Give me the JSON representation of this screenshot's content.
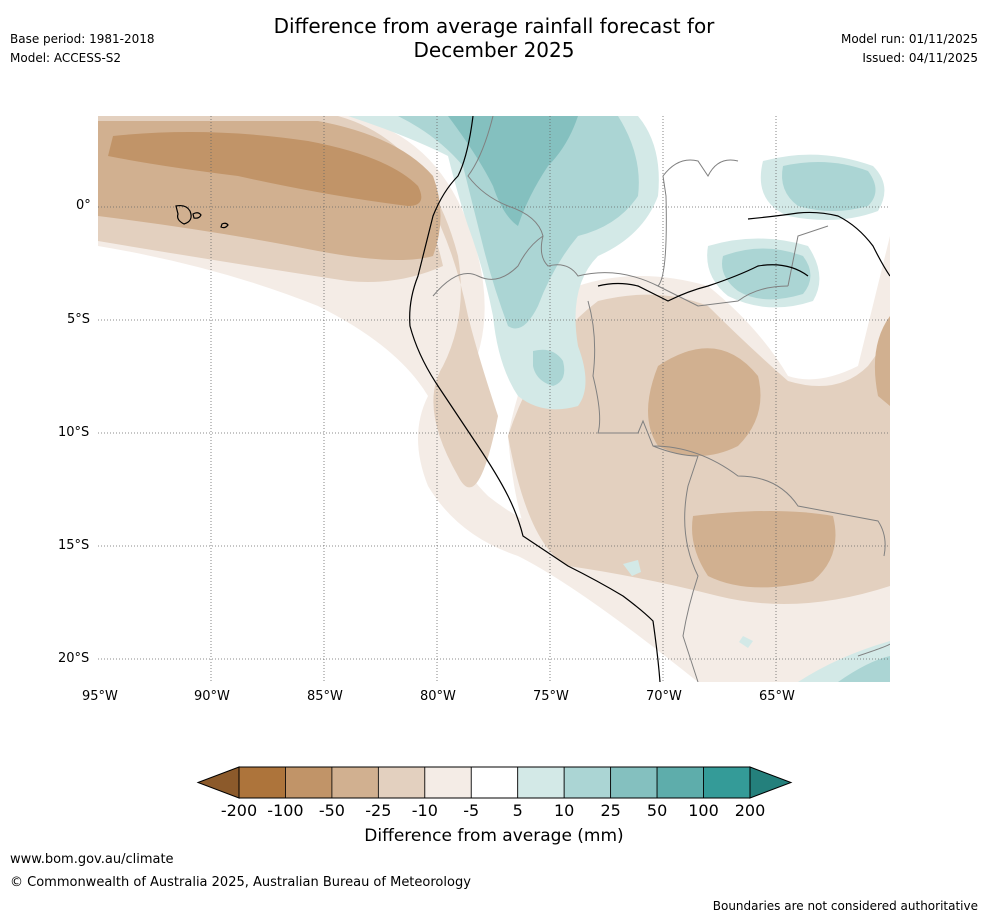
{
  "header": {
    "title_line1": "Difference from average rainfall forecast for",
    "title_line2": "December 2025",
    "base_period": "Base period: 1981-2018",
    "model": "Model: ACCESS-S2",
    "model_run": "Model run: 01/11/2025",
    "issued": "Issued: 04/11/2025"
  },
  "map": {
    "lon_labels": [
      "95°W",
      "90°W",
      "85°W",
      "80°W",
      "75°W",
      "70°W",
      "65°W"
    ],
    "lat_labels": [
      "0°",
      "5°S",
      "10°S",
      "15°S",
      "20°S"
    ],
    "colors": {
      "dry_200": "#8c5a2b",
      "dry_100": "#ad743b",
      "dry_50": "#c19468",
      "dry_25": "#d1b090",
      "dry_10": "#e3d0bf",
      "dry_5": "#f4ece6",
      "wet_5": "#d3e9e7",
      "wet_10": "#abd5d4",
      "wet_25": "#84c0bf",
      "wet_50": "#5eadab",
      "wet_100": "#349b98",
      "wet_200": "#24807c",
      "coast": "#000000",
      "border": "#808080",
      "grid": "#666666"
    }
  },
  "colorbar": {
    "ticks": [
      "-200",
      "-100",
      "-50",
      "-25",
      "-10",
      "-5",
      "5",
      "10",
      "25",
      "50",
      "100",
      "200"
    ],
    "colors": [
      "#ad743b",
      "#c19468",
      "#d1b090",
      "#e3d0bf",
      "#f4ece6",
      "#ffffff",
      "#d3e9e7",
      "#abd5d4",
      "#84c0bf",
      "#5eadab",
      "#349b98"
    ],
    "low_extend_color": "#8c5a2b",
    "high_extend_color": "#24807c",
    "label": "Difference from average (mm)"
  },
  "footer": {
    "url": "www.bom.gov.au/climate",
    "copyright": "© Commonwealth of Australia 2025, Australian Bureau of Meteorology",
    "disclaimer": "Boundaries are not considered authoritative"
  }
}
